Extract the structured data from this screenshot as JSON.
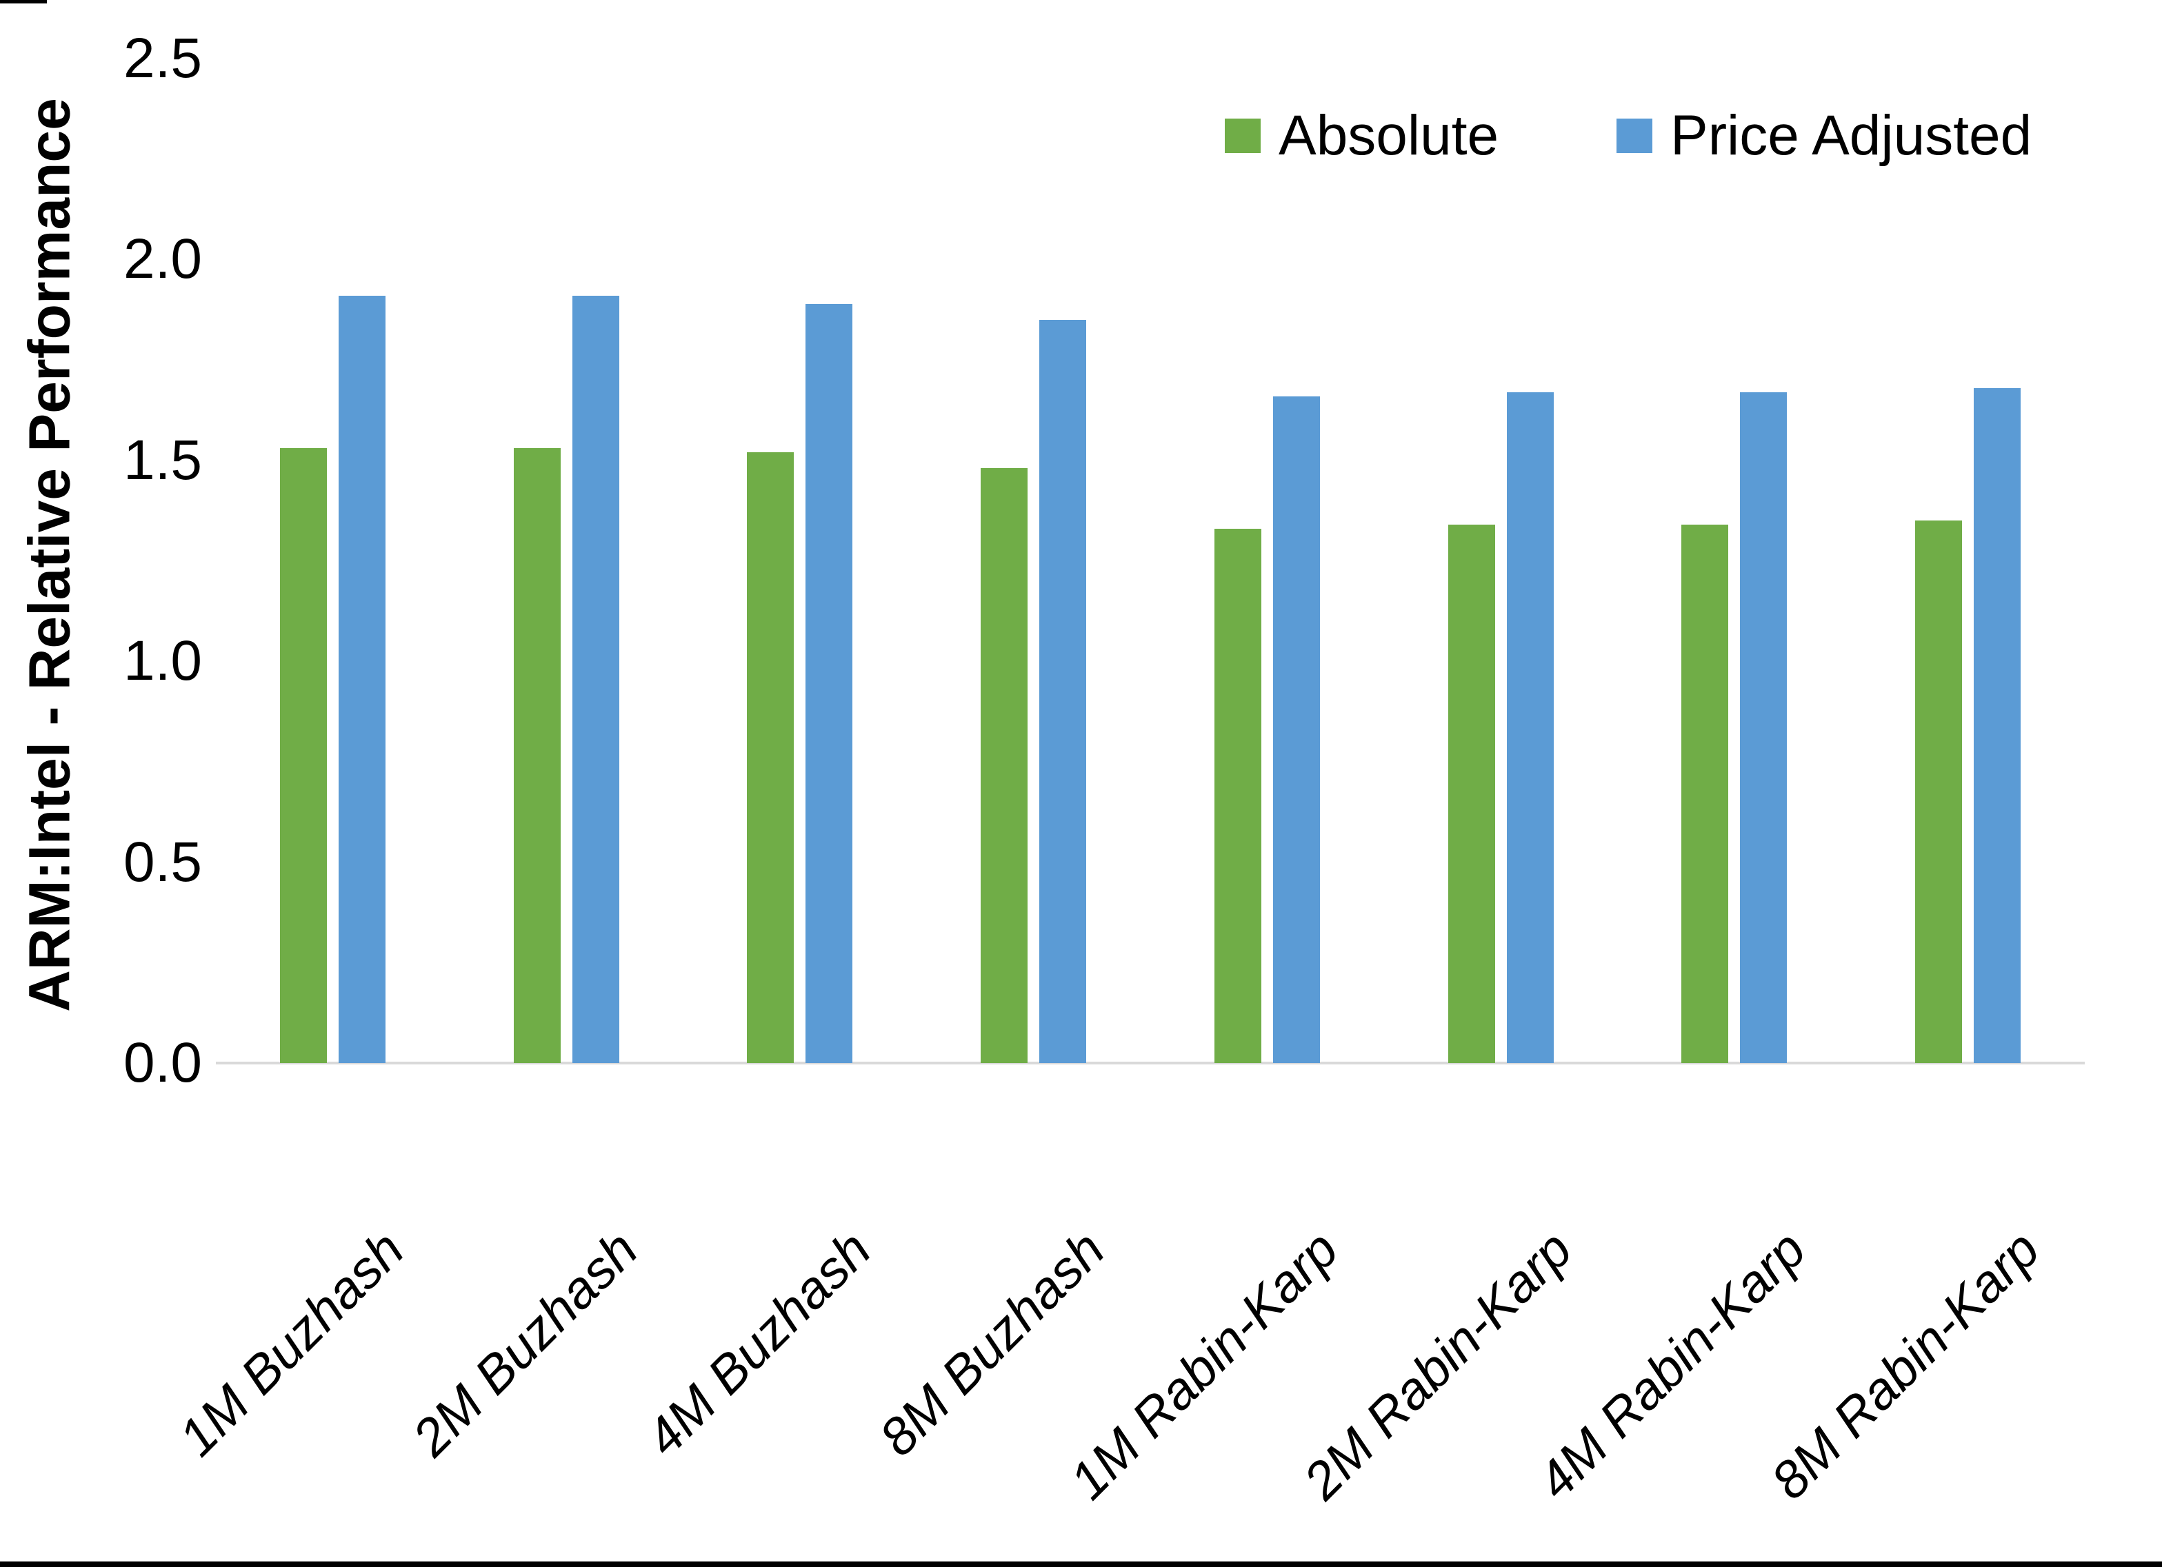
{
  "page": {
    "background": "#FFFFFF",
    "bottom_border_color": "#000000"
  },
  "chart_data": {
    "type": "bar",
    "title": "",
    "xlabel": "",
    "ylabel": "ARM:Intel - Relative Performance",
    "categories": [
      "1M Buzhash",
      "2M Buzhash",
      "4M Buzhash",
      "8M Buzhash",
      "1M Rabin-Karp",
      "2M Rabin-Karp",
      "4M Rabin-Karp",
      "8M Rabin-Karp"
    ],
    "series": [
      {
        "name": "Absolute",
        "color": "#70AD47",
        "values": [
          1.53,
          1.53,
          1.52,
          1.48,
          1.33,
          1.34,
          1.34,
          1.35
        ]
      },
      {
        "name": "Price Adjusted",
        "color": "#5B9BD5",
        "values": [
          1.91,
          1.91,
          1.89,
          1.85,
          1.66,
          1.67,
          1.67,
          1.68
        ]
      }
    ],
    "ylim": [
      0,
      2.5
    ],
    "yticks": [
      "0.0",
      "0.5",
      "1.0",
      "1.5",
      "2.0",
      "2.5"
    ],
    "grid": false,
    "legend_position": "top-right",
    "axis_line_color": "#D9D9D9",
    "text_color": "#000000",
    "x_tick_label_style": "italic, rotated 45deg"
  }
}
